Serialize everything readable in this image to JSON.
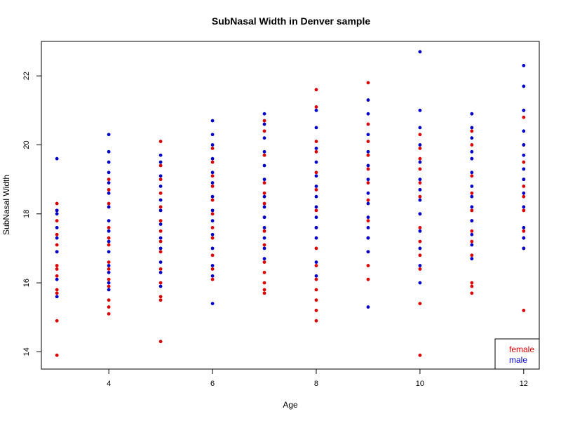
{
  "chart_data": {
    "type": "scatter",
    "title": "SubNasal Width in Denver sample",
    "xlabel": "Age",
    "ylabel": "SubNasal Width",
    "xlim": [
      2.7,
      12.3
    ],
    "ylim": [
      13.5,
      23.0
    ],
    "xticks": [
      4,
      6,
      8,
      10,
      12
    ],
    "yticks": [
      14,
      16,
      18,
      20,
      22
    ],
    "grid": false,
    "legend": {
      "placement": "bottom-right",
      "entries": [
        {
          "label": "female",
          "color": "#dd0000"
        },
        {
          "label": "male",
          "color": "#0000cc"
        }
      ]
    },
    "series": [
      {
        "name": "female",
        "color": "#dd0000",
        "points": [
          [
            3,
            13.9
          ],
          [
            3,
            14.9
          ],
          [
            3,
            15.7
          ],
          [
            3,
            15.8
          ],
          [
            3,
            16.2
          ],
          [
            3,
            16.4
          ],
          [
            3,
            16.5
          ],
          [
            3,
            16.9
          ],
          [
            3,
            17.1
          ],
          [
            3,
            17.4
          ],
          [
            3,
            17.8
          ],
          [
            3,
            18.1
          ],
          [
            3,
            18.3
          ],
          [
            4,
            15.1
          ],
          [
            4,
            15.3
          ],
          [
            4,
            15.5
          ],
          [
            4,
            15.9
          ],
          [
            4,
            16.1
          ],
          [
            4,
            16.4
          ],
          [
            4,
            16.6
          ],
          [
            4,
            17.1
          ],
          [
            4,
            17.3
          ],
          [
            4,
            17.6
          ],
          [
            4,
            18.3
          ],
          [
            4,
            18.7
          ],
          [
            4,
            19.0
          ],
          [
            5,
            14.3
          ],
          [
            5,
            15.5
          ],
          [
            5,
            15.6
          ],
          [
            5,
            16.0
          ],
          [
            5,
            16.4
          ],
          [
            5,
            16.9
          ],
          [
            5,
            17.2
          ],
          [
            5,
            17.5
          ],
          [
            5,
            17.8
          ],
          [
            5,
            18.2
          ],
          [
            5,
            18.6
          ],
          [
            5,
            19.0
          ],
          [
            5,
            19.4
          ],
          [
            5,
            20.1
          ],
          [
            6,
            16.1
          ],
          [
            6,
            16.4
          ],
          [
            6,
            16.8
          ],
          [
            6,
            17.3
          ],
          [
            6,
            17.6
          ],
          [
            6,
            18.0
          ],
          [
            6,
            18.4
          ],
          [
            6,
            18.8
          ],
          [
            6,
            19.1
          ],
          [
            6,
            19.5
          ],
          [
            6,
            19.9
          ],
          [
            7,
            15.7
          ],
          [
            7,
            15.8
          ],
          [
            7,
            16.0
          ],
          [
            7,
            16.3
          ],
          [
            7,
            16.6
          ],
          [
            7,
            17.1
          ],
          [
            7,
            17.5
          ],
          [
            7,
            17.9
          ],
          [
            7,
            18.3
          ],
          [
            7,
            18.6
          ],
          [
            7,
            18.9
          ],
          [
            7,
            19.7
          ],
          [
            7,
            20.4
          ],
          [
            7,
            20.7
          ],
          [
            8,
            14.9
          ],
          [
            8,
            15.2
          ],
          [
            8,
            15.5
          ],
          [
            8,
            15.8
          ],
          [
            8,
            16.1
          ],
          [
            8,
            16.5
          ],
          [
            8,
            17.0
          ],
          [
            8,
            17.6
          ],
          [
            8,
            18.1
          ],
          [
            8,
            18.7
          ],
          [
            8,
            19.2
          ],
          [
            8,
            19.8
          ],
          [
            8,
            20.1
          ],
          [
            8,
            21.1
          ],
          [
            8,
            21.6
          ],
          [
            9,
            16.1
          ],
          [
            9,
            16.5
          ],
          [
            9,
            16.9
          ],
          [
            9,
            17.3
          ],
          [
            9,
            17.8
          ],
          [
            9,
            18.4
          ],
          [
            9,
            18.9
          ],
          [
            9,
            19.3
          ],
          [
            9,
            19.7
          ],
          [
            9,
            20.1
          ],
          [
            9,
            20.6
          ],
          [
            9,
            21.8
          ],
          [
            10,
            13.9
          ],
          [
            10,
            15.4
          ],
          [
            10,
            16.4
          ],
          [
            10,
            16.8
          ],
          [
            10,
            17.2
          ],
          [
            10,
            17.6
          ],
          [
            10,
            18.0
          ],
          [
            10,
            18.5
          ],
          [
            10,
            18.9
          ],
          [
            10,
            19.3
          ],
          [
            10,
            19.6
          ],
          [
            10,
            19.9
          ],
          [
            10,
            20.3
          ],
          [
            11,
            15.7
          ],
          [
            11,
            15.9
          ],
          [
            11,
            16.0
          ],
          [
            11,
            16.8
          ],
          [
            11,
            17.2
          ],
          [
            11,
            17.5
          ],
          [
            11,
            17.8
          ],
          [
            11,
            18.1
          ],
          [
            11,
            18.6
          ],
          [
            11,
            19.1
          ],
          [
            11,
            19.6
          ],
          [
            11,
            20.0
          ],
          [
            11,
            20.4
          ],
          [
            11,
            20.9
          ],
          [
            12,
            15.2
          ],
          [
            12,
            17.0
          ],
          [
            12,
            17.3
          ],
          [
            12,
            17.5
          ],
          [
            12,
            18.1
          ],
          [
            12,
            18.5
          ],
          [
            12,
            18.8
          ],
          [
            12,
            19.0
          ],
          [
            12,
            19.5
          ],
          [
            12,
            20.0
          ],
          [
            12,
            20.8
          ],
          [
            12,
            21.0
          ]
        ]
      },
      {
        "name": "male",
        "color": "#0000cc",
        "points": [
          [
            3,
            15.6
          ],
          [
            3,
            16.1
          ],
          [
            3,
            16.9
          ],
          [
            3,
            17.3
          ],
          [
            3,
            17.6
          ],
          [
            3,
            18.0
          ],
          [
            3,
            18.1
          ],
          [
            3,
            19.6
          ],
          [
            4,
            15.8
          ],
          [
            4,
            16.0
          ],
          [
            4,
            16.3
          ],
          [
            4,
            16.5
          ],
          [
            4,
            16.9
          ],
          [
            4,
            17.2
          ],
          [
            4,
            17.5
          ],
          [
            4,
            17.8
          ],
          [
            4,
            18.2
          ],
          [
            4,
            18.6
          ],
          [
            4,
            18.9
          ],
          [
            4,
            19.2
          ],
          [
            4,
            19.5
          ],
          [
            4,
            19.8
          ],
          [
            4,
            20.3
          ],
          [
            5,
            15.9
          ],
          [
            5,
            16.3
          ],
          [
            5,
            16.6
          ],
          [
            5,
            17.0
          ],
          [
            5,
            17.3
          ],
          [
            5,
            17.7
          ],
          [
            5,
            18.1
          ],
          [
            5,
            18.4
          ],
          [
            5,
            18.8
          ],
          [
            5,
            19.1
          ],
          [
            5,
            19.5
          ],
          [
            5,
            19.7
          ],
          [
            6,
            15.4
          ],
          [
            6,
            16.2
          ],
          [
            6,
            16.5
          ],
          [
            6,
            17.0
          ],
          [
            6,
            17.4
          ],
          [
            6,
            17.8
          ],
          [
            6,
            18.1
          ],
          [
            6,
            18.5
          ],
          [
            6,
            18.9
          ],
          [
            6,
            19.2
          ],
          [
            6,
            19.6
          ],
          [
            6,
            20.0
          ],
          [
            6,
            20.3
          ],
          [
            6,
            20.7
          ],
          [
            7,
            16.7
          ],
          [
            7,
            17.0
          ],
          [
            7,
            17.3
          ],
          [
            7,
            17.6
          ],
          [
            7,
            17.9
          ],
          [
            7,
            18.2
          ],
          [
            7,
            18.5
          ],
          [
            7,
            19.0
          ],
          [
            7,
            19.4
          ],
          [
            7,
            19.8
          ],
          [
            7,
            20.2
          ],
          [
            7,
            20.6
          ],
          [
            7,
            20.9
          ],
          [
            8,
            16.2
          ],
          [
            8,
            16.6
          ],
          [
            8,
            17.3
          ],
          [
            8,
            17.6
          ],
          [
            8,
            17.9
          ],
          [
            8,
            18.2
          ],
          [
            8,
            18.5
          ],
          [
            8,
            18.8
          ],
          [
            8,
            19.1
          ],
          [
            8,
            19.5
          ],
          [
            8,
            19.9
          ],
          [
            8,
            20.5
          ],
          [
            8,
            21.0
          ],
          [
            9,
            15.3
          ],
          [
            9,
            16.9
          ],
          [
            9,
            17.3
          ],
          [
            9,
            17.6
          ],
          [
            9,
            17.9
          ],
          [
            9,
            18.3
          ],
          [
            9,
            18.6
          ],
          [
            9,
            19.0
          ],
          [
            9,
            19.4
          ],
          [
            9,
            19.8
          ],
          [
            9,
            20.3
          ],
          [
            9,
            20.9
          ],
          [
            9,
            21.3
          ],
          [
            10,
            16.0
          ],
          [
            10,
            16.5
          ],
          [
            10,
            17.0
          ],
          [
            10,
            17.5
          ],
          [
            10,
            18.0
          ],
          [
            10,
            18.4
          ],
          [
            10,
            18.7
          ],
          [
            10,
            19.0
          ],
          [
            10,
            19.5
          ],
          [
            10,
            20.0
          ],
          [
            10,
            20.5
          ],
          [
            10,
            21.0
          ],
          [
            10,
            22.7
          ],
          [
            11,
            16.7
          ],
          [
            11,
            17.1
          ],
          [
            11,
            17.4
          ],
          [
            11,
            17.8
          ],
          [
            11,
            18.2
          ],
          [
            11,
            18.5
          ],
          [
            11,
            18.8
          ],
          [
            11,
            19.2
          ],
          [
            11,
            19.6
          ],
          [
            11,
            19.8
          ],
          [
            11,
            20.2
          ],
          [
            11,
            20.5
          ],
          [
            11,
            20.9
          ],
          [
            12,
            17.0
          ],
          [
            12,
            17.3
          ],
          [
            12,
            17.6
          ],
          [
            12,
            18.2
          ],
          [
            12,
            18.6
          ],
          [
            12,
            19.0
          ],
          [
            12,
            19.3
          ],
          [
            12,
            19.7
          ],
          [
            12,
            20.0
          ],
          [
            12,
            20.4
          ],
          [
            12,
            21.0
          ],
          [
            12,
            21.7
          ],
          [
            12,
            22.3
          ]
        ]
      }
    ]
  }
}
